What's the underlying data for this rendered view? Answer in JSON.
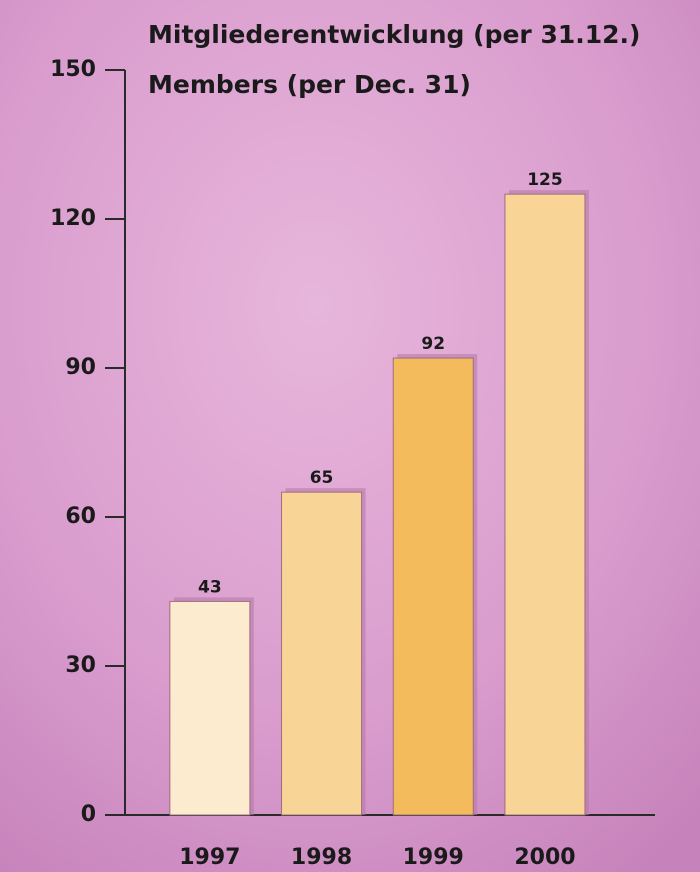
{
  "chart_data": {
    "type": "bar",
    "title": "Mitgliederentwicklung (per 31.12.)",
    "subtitle": "Members (per Dec. 31)",
    "categories": [
      "1997",
      "1998",
      "1999",
      "2000"
    ],
    "values": [
      43,
      65,
      92,
      125
    ],
    "colors": [
      "#fcebcf",
      "#f8d596",
      "#f3bb5c",
      "#f8d596"
    ],
    "ylim": [
      0,
      150
    ],
    "yticks": [
      0,
      30,
      60,
      90,
      120,
      150
    ]
  }
}
